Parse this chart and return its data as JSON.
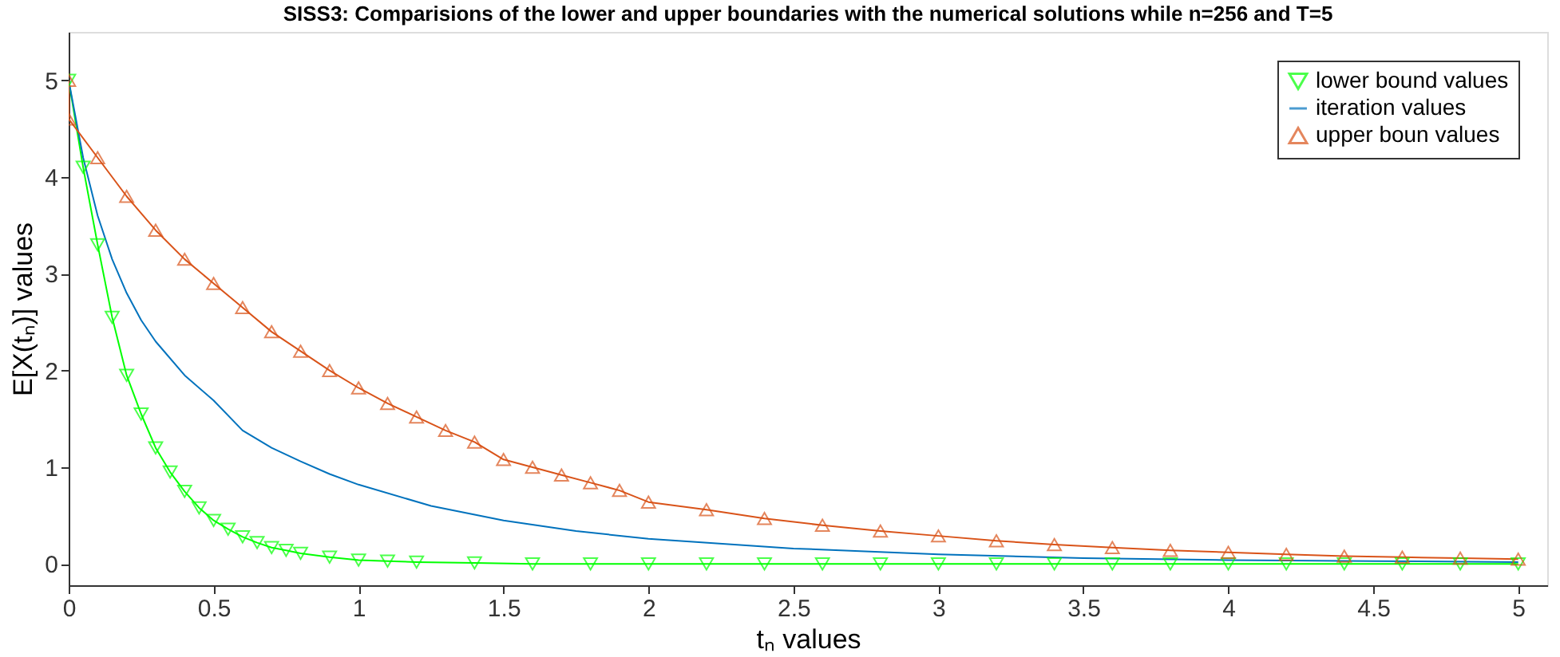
{
  "chart_data": {
    "type": "line",
    "title": "SISS3: Comparisions of the lower and upper boundaries with the numerical solutions while n=256 and T=5",
    "xlabel": "tₙ values",
    "ylabel": "E[X(tₙ)] values",
    "xlim": [
      0,
      5.1
    ],
    "ylim": [
      -0.22,
      5.5
    ],
    "xticks": [
      0,
      0.5,
      1,
      1.5,
      2,
      2.5,
      3,
      3.5,
      4,
      4.5,
      5
    ],
    "yticks": [
      0,
      1,
      2,
      3,
      4,
      5
    ],
    "grid": false,
    "legend": "top right",
    "series": [
      {
        "name": "lower bound values",
        "color": "#00ff00",
        "marker": "triangle_down",
        "x": [
          0,
          0.05,
          0.1,
          0.15,
          0.2,
          0.25,
          0.3,
          0.35,
          0.4,
          0.45,
          0.5,
          0.55,
          0.6,
          0.65,
          0.7,
          0.75,
          0.8,
          0.9,
          1.0,
          1.1,
          1.2,
          1.4,
          1.6,
          1.8,
          2.0,
          2.2,
          2.4,
          2.6,
          2.8,
          3.0,
          3.2,
          3.4,
          3.6,
          3.8,
          4.0,
          4.2,
          4.4,
          4.6,
          4.8,
          5.0
        ],
        "values": [
          5,
          4.1,
          3.3,
          2.55,
          1.95,
          1.55,
          1.2,
          0.95,
          0.75,
          0.58,
          0.45,
          0.36,
          0.28,
          0.22,
          0.17,
          0.14,
          0.11,
          0.07,
          0.04,
          0.03,
          0.02,
          0.01,
          0,
          0,
          0,
          0,
          0,
          0,
          0,
          0,
          0,
          0,
          0,
          0,
          0,
          0,
          0,
          0,
          0,
          0
        ]
      },
      {
        "name": "iteration values",
        "color": "#0072bd",
        "marker": "none",
        "x": [
          0,
          0.05,
          0.1,
          0.15,
          0.2,
          0.25,
          0.3,
          0.4,
          0.5,
          0.6,
          0.7,
          0.8,
          0.9,
          1.0,
          1.25,
          1.5,
          1.75,
          2.0,
          2.5,
          3.0,
          3.5,
          4.0,
          4.5,
          5.0
        ],
        "values": [
          5,
          4.2,
          3.6,
          3.15,
          2.8,
          2.52,
          2.3,
          1.95,
          1.69,
          1.38,
          1.2,
          1.06,
          0.93,
          0.82,
          0.6,
          0.45,
          0.34,
          0.26,
          0.16,
          0.1,
          0.06,
          0.04,
          0.03,
          0.02
        ]
      },
      {
        "name": "upper boun values",
        "color": "#d95319",
        "marker": "triangle",
        "x": [
          0,
          0,
          0.1,
          0.2,
          0.3,
          0.4,
          0.5,
          0.6,
          0.7,
          0.8,
          0.9,
          1.0,
          1.1,
          1.2,
          1.3,
          1.4,
          1.5,
          1.6,
          1.7,
          1.8,
          1.9,
          2.0,
          2.2,
          2.4,
          2.6,
          2.8,
          3.0,
          3.2,
          3.4,
          3.6,
          3.8,
          4.0,
          4.2,
          4.4,
          4.6,
          4.8,
          5.0
        ],
        "values": [
          5,
          4.6,
          4.2,
          3.8,
          3.45,
          3.15,
          2.9,
          2.65,
          2.4,
          2.2,
          2.0,
          1.82,
          1.66,
          1.52,
          1.38,
          1.26,
          1.08,
          1.0,
          0.92,
          0.84,
          0.76,
          0.64,
          0.56,
          0.47,
          0.4,
          0.34,
          0.29,
          0.24,
          0.2,
          0.17,
          0.14,
          0.12,
          0.1,
          0.08,
          0.07,
          0.06,
          0.05
        ]
      }
    ]
  }
}
